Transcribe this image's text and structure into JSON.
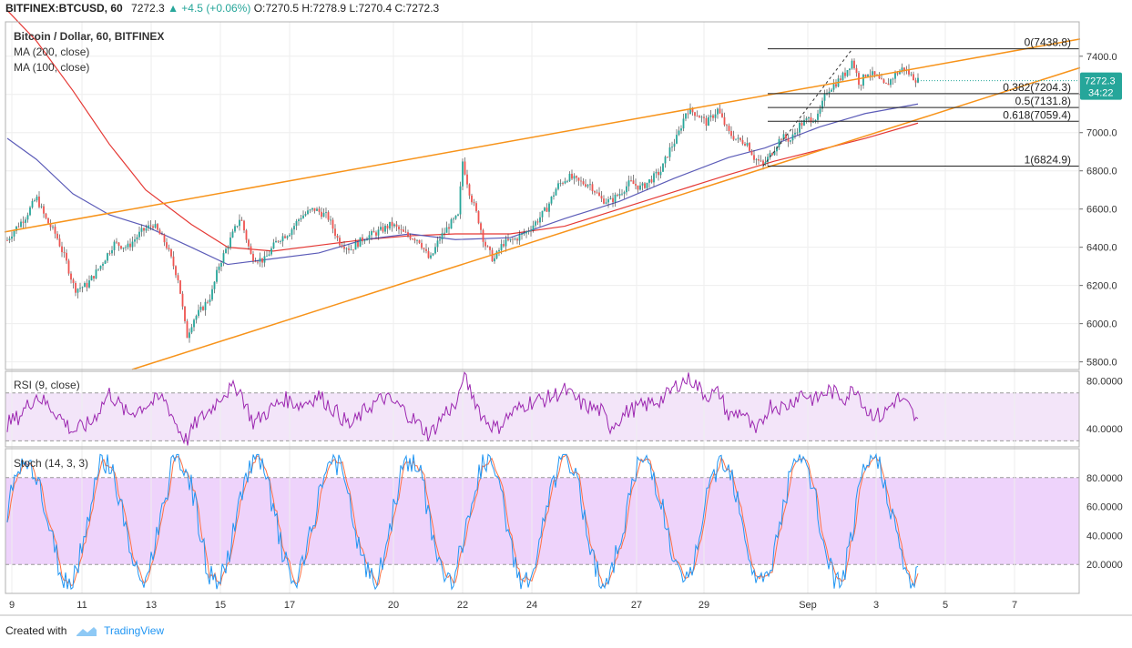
{
  "header": {
    "symbol": "BITFINEX:BTCUSD, 60",
    "last": "7272.3",
    "change": "▲ +4.5 (+0.06%)",
    "o_label": "O:",
    "o": "7270.5",
    "h_label": "H:",
    "h": "7278.9",
    "l_label": "L:",
    "l": "7270.4",
    "c_label": "C:",
    "c": "7272.3"
  },
  "legend": {
    "title": "Bitcoin / Dollar, 60, BITFINEX",
    "ma200": "MA (200, close)",
    "ma100": "MA (100, close)"
  },
  "colors": {
    "up": "#26a69a",
    "down": "#ef5350",
    "ma200": "#e53935",
    "ma100": "#5c5cb8",
    "trend": "#f7931a",
    "fib": "#222222",
    "rsi": "#9c27b0",
    "stoch_k": "#2196f3",
    "stoch_d": "#ff7043",
    "rsi_band": "#f3e5f9",
    "stoch_band": "#eed3fb",
    "price_tag": "#26a69a",
    "grid": "#eeeeee"
  },
  "chart_data": [
    {
      "type": "candlestick",
      "title": "Bitcoin / Dollar, 60, BITFINEX",
      "ylim": [
        5760,
        7580
      ],
      "yticks": [
        "7400.0",
        "7200.0",
        "7000.0",
        "6800.0",
        "6600.0",
        "6400.0",
        "6200.0",
        "6000.0",
        "5800.0"
      ],
      "xticks": [
        "9",
        "11",
        "13",
        "15",
        "17",
        "20",
        "22",
        "24",
        "27",
        "29",
        "Sep",
        "3",
        "5",
        "7"
      ],
      "price_path": [
        [
          0,
          6380
        ],
        [
          14,
          6480
        ],
        [
          28,
          6560
        ],
        [
          40,
          6660
        ],
        [
          50,
          6550
        ],
        [
          62,
          6460
        ],
        [
          73,
          6320
        ],
        [
          82,
          6180
        ],
        [
          95,
          6200
        ],
        [
          110,
          6300
        ],
        [
          125,
          6420
        ],
        [
          140,
          6400
        ],
        [
          155,
          6480
        ],
        [
          168,
          6520
        ],
        [
          182,
          6420
        ],
        [
          196,
          6230
        ],
        [
          205,
          5930
        ],
        [
          212,
          6020
        ],
        [
          222,
          6080
        ],
        [
          232,
          6150
        ],
        [
          240,
          6300
        ],
        [
          252,
          6430
        ],
        [
          264,
          6560
        ],
        [
          276,
          6350
        ],
        [
          290,
          6330
        ],
        [
          305,
          6440
        ],
        [
          318,
          6480
        ],
        [
          330,
          6560
        ],
        [
          345,
          6600
        ],
        [
          360,
          6560
        ],
        [
          372,
          6430
        ],
        [
          385,
          6390
        ],
        [
          400,
          6450
        ],
        [
          415,
          6480
        ],
        [
          430,
          6520
        ],
        [
          444,
          6470
        ],
        [
          460,
          6440
        ],
        [
          472,
          6330
        ],
        [
          482,
          6440
        ],
        [
          494,
          6520
        ],
        [
          503,
          6560
        ],
        [
          508,
          6850
        ],
        [
          516,
          6680
        ],
        [
          525,
          6550
        ],
        [
          532,
          6420
        ],
        [
          542,
          6330
        ],
        [
          552,
          6420
        ],
        [
          565,
          6440
        ],
        [
          578,
          6480
        ],
        [
          590,
          6540
        ],
        [
          600,
          6600
        ],
        [
          612,
          6720
        ],
        [
          624,
          6770
        ],
        [
          636,
          6740
        ],
        [
          648,
          6730
        ],
        [
          660,
          6650
        ],
        [
          670,
          6640
        ],
        [
          680,
          6680
        ],
        [
          692,
          6740
        ],
        [
          704,
          6710
        ],
        [
          716,
          6760
        ],
        [
          726,
          6800
        ],
        [
          734,
          6900
        ],
        [
          744,
          6980
        ],
        [
          754,
          7120
        ],
        [
          765,
          7100
        ],
        [
          776,
          7050
        ],
        [
          788,
          7120
        ],
        [
          800,
          7000
        ],
        [
          810,
          6960
        ],
        [
          820,
          6950
        ],
        [
          828,
          6870
        ],
        [
          838,
          6830
        ],
        [
          848,
          6900
        ],
        [
          858,
          6980
        ],
        [
          868,
          6960
        ],
        [
          878,
          7040
        ],
        [
          888,
          7070
        ],
        [
          898,
          7080
        ],
        [
          908,
          7220
        ],
        [
          918,
          7260
        ],
        [
          928,
          7310
        ],
        [
          936,
          7380
        ],
        [
          944,
          7250
        ],
        [
          952,
          7320
        ],
        [
          962,
          7290
        ],
        [
          972,
          7240
        ],
        [
          982,
          7300
        ],
        [
          992,
          7340
        ],
        [
          1000,
          7300
        ],
        [
          1008,
          7272
        ]
      ],
      "series": [
        {
          "name": "MA (200, close)",
          "points": [
            [
              8,
              7640
            ],
            [
              40,
              7480
            ],
            [
              80,
              7220
            ],
            [
              120,
              6940
            ],
            [
              160,
              6700
            ],
            [
              210,
              6520
            ],
            [
              250,
              6400
            ],
            [
              300,
              6380
            ],
            [
              350,
              6410
            ],
            [
              400,
              6440
            ],
            [
              450,
              6460
            ],
            [
              500,
              6470
            ],
            [
              560,
              6470
            ],
            [
              620,
              6510
            ],
            [
              680,
              6600
            ],
            [
              740,
              6690
            ],
            [
              800,
              6780
            ],
            [
              850,
              6850
            ],
            [
              900,
              6910
            ],
            [
              950,
              6970
            ],
            [
              1008,
              7050
            ]
          ]
        },
        {
          "name": "MA (100, close)",
          "points": [
            [
              8,
              6970
            ],
            [
              40,
              6860
            ],
            [
              80,
              6680
            ],
            [
              120,
              6570
            ],
            [
              160,
              6510
            ],
            [
              210,
              6400
            ],
            [
              250,
              6310
            ],
            [
              300,
              6340
            ],
            [
              350,
              6370
            ],
            [
              400,
              6440
            ],
            [
              450,
              6470
            ],
            [
              500,
              6440
            ],
            [
              560,
              6450
            ],
            [
              620,
              6550
            ],
            [
              680,
              6640
            ],
            [
              740,
              6760
            ],
            [
              800,
              6870
            ],
            [
              840,
              6920
            ],
            [
              900,
              7030
            ],
            [
              950,
              7100
            ],
            [
              1008,
              7150
            ]
          ]
        }
      ],
      "trendlines": [
        {
          "from": [
            5,
            6480
          ],
          "to": [
            1186,
            7490
          ]
        },
        {
          "from": [
            145,
            5760
          ],
          "to": [
            1186,
            7340
          ]
        }
      ],
      "fib_levels": [
        {
          "label": "0(7438.8)",
          "value": 7438.8
        },
        {
          "label": "0.382(7204.3)",
          "value": 7204.3
        },
        {
          "label": "0.5(7131.8)",
          "value": 7131.8
        },
        {
          "label": "0.618(7059.4)",
          "value": 7059.4
        },
        {
          "label": "1(6824.9)",
          "value": 6824.9
        }
      ],
      "current_price": "7272.3",
      "countdown": "34:22"
    },
    {
      "type": "line",
      "title": "RSI (9, close)",
      "ylim": [
        25,
        88
      ],
      "yticks": [
        "80.0000",
        "40.0000"
      ],
      "band": [
        30,
        70
      ],
      "path": [
        [
          0,
          40
        ],
        [
          20,
          50
        ],
        [
          40,
          68
        ],
        [
          60,
          55
        ],
        [
          80,
          38
        ],
        [
          100,
          45
        ],
        [
          120,
          70
        ],
        [
          140,
          52
        ],
        [
          160,
          60
        ],
        [
          180,
          66
        ],
        [
          196,
          40
        ],
        [
          205,
          30
        ],
        [
          215,
          45
        ],
        [
          230,
          55
        ],
        [
          245,
          70
        ],
        [
          262,
          75
        ],
        [
          278,
          45
        ],
        [
          295,
          55
        ],
        [
          312,
          65
        ],
        [
          330,
          60
        ],
        [
          350,
          68
        ],
        [
          368,
          55
        ],
        [
          385,
          42
        ],
        [
          404,
          58
        ],
        [
          422,
          66
        ],
        [
          440,
          58
        ],
        [
          458,
          45
        ],
        [
          472,
          35
        ],
        [
          490,
          55
        ],
        [
          503,
          60
        ],
        [
          508,
          85
        ],
        [
          518,
          70
        ],
        [
          530,
          50
        ],
        [
          545,
          40
        ],
        [
          560,
          52
        ],
        [
          580,
          62
        ],
        [
          600,
          65
        ],
        [
          620,
          72
        ],
        [
          640,
          60
        ],
        [
          660,
          55
        ],
        [
          670,
          42
        ],
        [
          690,
          55
        ],
        [
          710,
          60
        ],
        [
          730,
          66
        ],
        [
          745,
          78
        ],
        [
          758,
          82
        ],
        [
          775,
          68
        ],
        [
          790,
          70
        ],
        [
          800,
          50
        ],
        [
          815,
          55
        ],
        [
          830,
          35
        ],
        [
          845,
          60
        ],
        [
          862,
          58
        ],
        [
          880,
          70
        ],
        [
          895,
          64
        ],
        [
          910,
          72
        ],
        [
          928,
          66
        ],
        [
          940,
          75
        ],
        [
          952,
          55
        ],
        [
          968,
          50
        ],
        [
          985,
          66
        ],
        [
          998,
          58
        ],
        [
          1008,
          44
        ]
      ]
    },
    {
      "type": "line",
      "title": "Stoch (14, 3, 3)",
      "ylim": [
        0,
        100
      ],
      "yticks": [
        "80.0000",
        "60.0000",
        "40.0000",
        "20.0000"
      ],
      "band": [
        20,
        80
      ]
    }
  ],
  "footer": {
    "created_with": "Created with",
    "brand": "TradingView"
  }
}
